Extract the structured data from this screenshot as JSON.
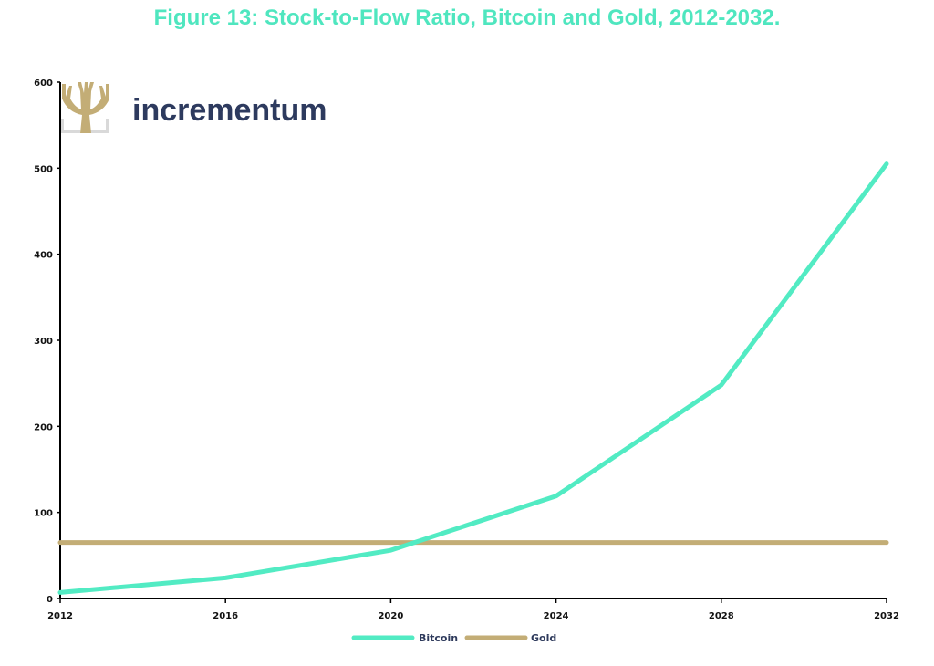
{
  "title": "Figure 13: Stock-to-Flow Ratio, Bitcoin and Gold, 2012-2032.",
  "brand": {
    "name": "incrementum",
    "logo_icon": "tree-logo-icon"
  },
  "colors": {
    "title": "#4fe6bf",
    "bitcoin": "#52ebc3",
    "gold": "#c3ad76",
    "brand_text": "#2d3a5e"
  },
  "chart_data": {
    "type": "line",
    "x": [
      2012,
      2016,
      2020,
      2024,
      2028,
      2032
    ],
    "xticks": [
      "2012",
      "2016",
      "2020",
      "2024",
      "2028",
      "2032"
    ],
    "xlim": [
      2012,
      2032
    ],
    "yticks": [
      "0",
      "100",
      "200",
      "300",
      "400",
      "500",
      "600"
    ],
    "ylim": [
      0,
      600
    ],
    "grid": false,
    "legend": "bottom-center",
    "series": [
      {
        "name": "Bitcoin",
        "color": "#52ebc3",
        "values": [
          7,
          24,
          56,
          119,
          248,
          505
        ]
      },
      {
        "name": "Gold",
        "color": "#c3ad76",
        "values": [
          65,
          65,
          65,
          65,
          65,
          65
        ]
      }
    ]
  }
}
